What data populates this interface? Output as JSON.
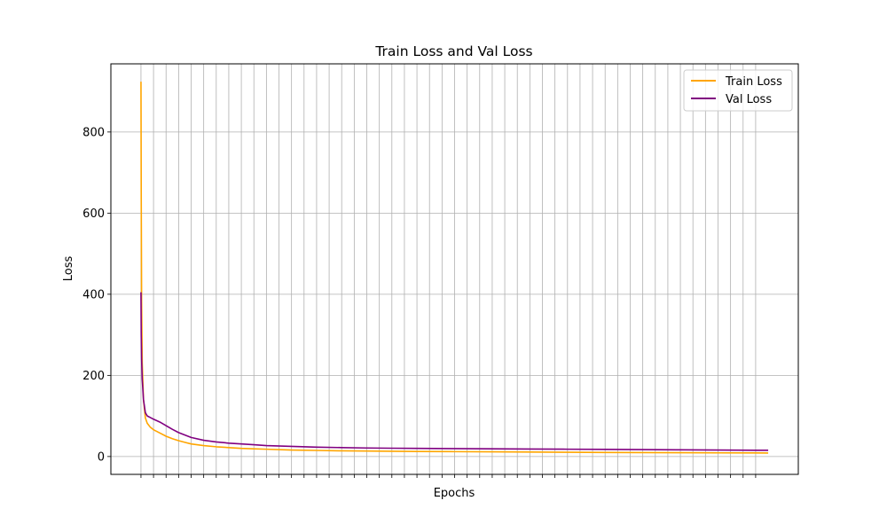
{
  "chart_data": {
    "type": "line",
    "title": "Train Loss and Val Loss",
    "xlabel": "Epochs",
    "ylabel": "Loss",
    "xlim": [
      -2.4,
      52.4
    ],
    "ylim": [
      -44,
      968
    ],
    "yticks": [
      0,
      200,
      400,
      600,
      800
    ],
    "xticks_count": 50,
    "x_tick_labels_shown": false,
    "grid": true,
    "legend_position": "top-right",
    "series": [
      {
        "name": "Train Loss",
        "color": "#ffa500",
        "x": [
          0,
          0.02,
          0.05,
          0.1,
          0.2,
          0.35,
          0.5,
          0.75,
          1,
          1.5,
          2,
          2.5,
          3,
          3.5,
          4,
          5,
          6,
          7,
          8,
          9,
          10,
          12,
          14,
          16,
          18,
          20,
          22,
          25,
          28,
          31,
          34,
          37,
          40,
          43,
          46,
          49,
          50
        ],
        "values": [
          924,
          650,
          380,
          230,
          140,
          95,
          82,
          72,
          66,
          58,
          50,
          44,
          39,
          35,
          31,
          27,
          24,
          22,
          20,
          19,
          18,
          16,
          15,
          14,
          13.5,
          13,
          12.5,
          12,
          11.5,
          11,
          10.5,
          10,
          9.6,
          9.3,
          9,
          8.8,
          8.6
        ]
      },
      {
        "name": "Val Loss",
        "color": "#800080",
        "x": [
          0,
          0.02,
          0.05,
          0.1,
          0.2,
          0.35,
          0.5,
          0.75,
          1,
          1.5,
          2,
          2.5,
          3,
          3.5,
          4,
          5,
          6,
          7,
          8,
          9,
          10,
          12,
          14,
          16,
          18,
          20,
          22,
          25,
          28,
          31,
          34,
          37,
          40,
          43,
          46,
          49,
          50
        ],
        "values": [
          405,
          300,
          240,
          190,
          140,
          108,
          100,
          96,
          92,
          85,
          76,
          67,
          59,
          53,
          47,
          40,
          36,
          33,
          31,
          29,
          27,
          25,
          23,
          22,
          21,
          20.5,
          20,
          19.5,
          19,
          18.5,
          18,
          17.5,
          17,
          16.5,
          16,
          15.5,
          15.5
        ]
      }
    ]
  }
}
